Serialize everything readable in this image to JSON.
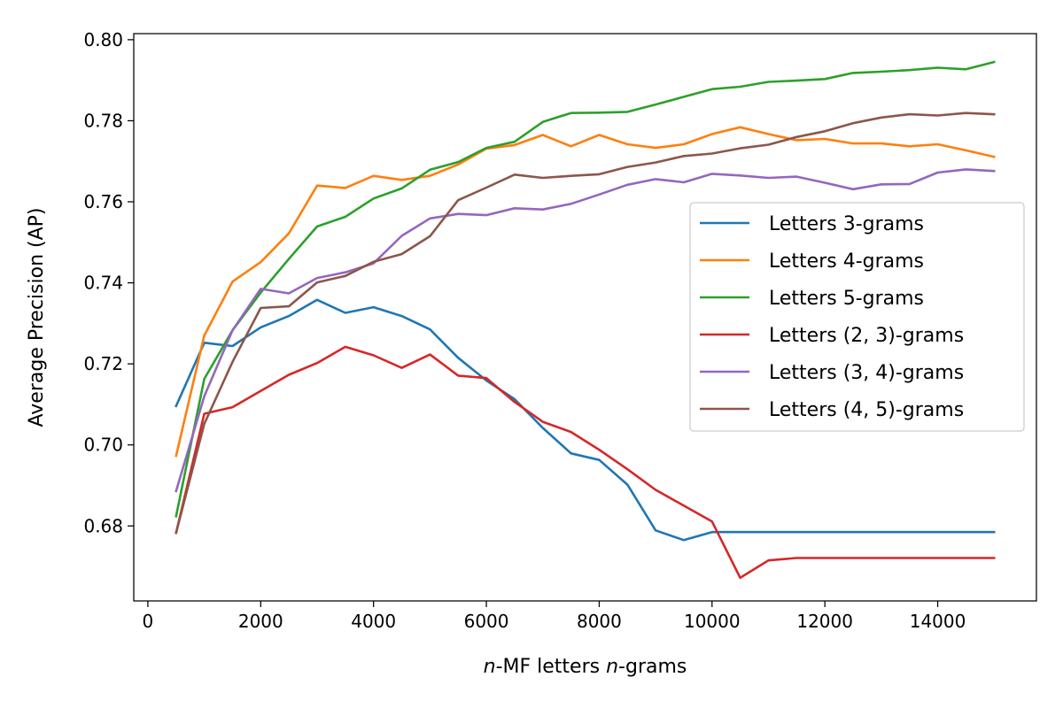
{
  "chart_data": {
    "type": "line",
    "xlabel": {
      "italic_prefix": "n",
      "mid": "-MF letters ",
      "italic_n": "n",
      "suffix": "-grams"
    },
    "ylabel": "Average Precision (AP)",
    "xlim": [
      -250,
      15750
    ],
    "ylim": [
      0.6615,
      0.8015
    ],
    "x_ticks": [
      0,
      2000,
      4000,
      6000,
      8000,
      10000,
      12000,
      14000
    ],
    "y_ticks": [
      0.68,
      0.7,
      0.72,
      0.74,
      0.76,
      0.78,
      0.8
    ],
    "y_tick_labels": [
      "0.68",
      "0.70",
      "0.72",
      "0.74",
      "0.76",
      "0.78",
      "0.80"
    ],
    "grid": false,
    "legend_position": "center-right",
    "x": [
      500,
      1000,
      1500,
      2000,
      2500,
      3000,
      3500,
      4000,
      4500,
      5000,
      5500,
      6000,
      6500,
      7000,
      7500,
      8000,
      8500,
      9000,
      9500,
      10000,
      10500,
      11000,
      11500,
      12000,
      12500,
      13000,
      13500,
      14000,
      14500,
      15000
    ],
    "series": [
      {
        "name": "Letters 3-grams",
        "color": "#1f77b4",
        "values": [
          0.7096,
          0.7252,
          0.7244,
          0.729,
          0.7318,
          0.7358,
          0.7326,
          0.734,
          0.7318,
          0.7285,
          0.7215,
          0.7159,
          0.7113,
          0.7042,
          0.6979,
          0.6963,
          0.6902,
          0.6789,
          0.6765,
          0.6785,
          0.6785,
          0.6785,
          0.6785,
          0.6785,
          0.6785,
          0.6785,
          0.6785,
          0.6785,
          0.6785,
          0.6785
        ]
      },
      {
        "name": "Letters 4-grams",
        "color": "#ff7f0e",
        "values": [
          0.6973,
          0.727,
          0.7403,
          0.7451,
          0.7522,
          0.764,
          0.7634,
          0.7664,
          0.7654,
          0.7664,
          0.7692,
          0.7731,
          0.774,
          0.7765,
          0.7737,
          0.7765,
          0.7742,
          0.7733,
          0.7742,
          0.7767,
          0.7784,
          0.7767,
          0.7752,
          0.7755,
          0.7744,
          0.7744,
          0.7737,
          0.7742,
          0.7727,
          0.7711
        ]
      },
      {
        "name": "Letters 5-grams",
        "color": "#2ca02c",
        "values": [
          0.6824,
          0.7163,
          0.7283,
          0.7376,
          0.7459,
          0.7539,
          0.7563,
          0.7608,
          0.7633,
          0.7679,
          0.7698,
          0.7733,
          0.7748,
          0.7797,
          0.7819,
          0.782,
          0.7822,
          0.784,
          0.7859,
          0.7878,
          0.7884,
          0.7896,
          0.7899,
          0.7903,
          0.7918,
          0.7921,
          0.7925,
          0.7931,
          0.7927,
          0.7945
        ]
      },
      {
        "name": "Letters (2, 3)-grams",
        "color": "#d62728",
        "values": [
          0.6783,
          0.7077,
          0.7093,
          0.7133,
          0.7173,
          0.7202,
          0.7242,
          0.7221,
          0.719,
          0.7223,
          0.7171,
          0.7165,
          0.7106,
          0.7057,
          0.7032,
          0.6988,
          0.694,
          0.6889,
          0.685,
          0.6811,
          0.6672,
          0.6715,
          0.6721,
          0.6721,
          0.6721,
          0.6721,
          0.6721,
          0.6721,
          0.6721,
          0.6721
        ]
      },
      {
        "name": "Letters (3, 4)-grams",
        "color": "#9467bd",
        "values": [
          0.6886,
          0.712,
          0.7283,
          0.7385,
          0.7374,
          0.7412,
          0.7426,
          0.7448,
          0.7516,
          0.7559,
          0.757,
          0.7567,
          0.7584,
          0.7581,
          0.7595,
          0.7618,
          0.7642,
          0.7656,
          0.7648,
          0.7669,
          0.7665,
          0.7659,
          0.7662,
          0.7647,
          0.7631,
          0.7643,
          0.7644,
          0.7672,
          0.768,
          0.7676
        ]
      },
      {
        "name": "Letters (4, 5)-grams",
        "color": "#8c564b",
        "values": [
          0.6783,
          0.7052,
          0.7205,
          0.7338,
          0.7342,
          0.7401,
          0.7417,
          0.7452,
          0.7471,
          0.7515,
          0.7604,
          0.7635,
          0.7667,
          0.7659,
          0.7664,
          0.7668,
          0.7686,
          0.7697,
          0.7713,
          0.7719,
          0.7732,
          0.7741,
          0.776,
          0.7774,
          0.7794,
          0.7808,
          0.7816,
          0.7813,
          0.7819,
          0.7816
        ]
      }
    ]
  }
}
